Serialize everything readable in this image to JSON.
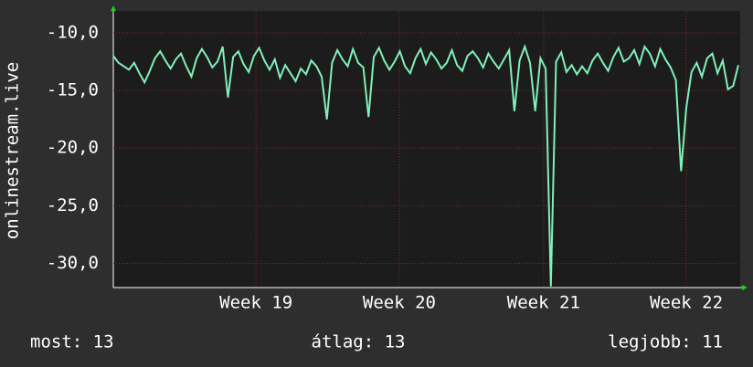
{
  "chart_data": {
    "type": "line",
    "y_label": "onlinestream.live",
    "values": [
      -12,
      -12.6,
      -12.9,
      -13.2,
      -12.6,
      -13.5,
      -14.3,
      -13.3,
      -12.2,
      -11.6,
      -12.4,
      -13.1,
      -12.3,
      -11.8,
      -12.9,
      -13.8,
      -12.2,
      -11.4,
      -12.1,
      -13.0,
      -12.5,
      -11.2,
      -15.6,
      -12.1,
      -11.6,
      -12.7,
      -13.4,
      -12.0,
      -11.3,
      -12.4,
      -13.2,
      -12.3,
      -13.9,
      -12.8,
      -13.5,
      -14.2,
      -13.1,
      -13.6,
      -12.4,
      -12.9,
      -13.8,
      -17.5,
      -12.6,
      -11.5,
      -12.3,
      -12.9,
      -11.4,
      -12.6,
      -13.0,
      -17.3,
      -12.1,
      -11.3,
      -12.4,
      -13.2,
      -12.5,
      -11.6,
      -12.9,
      -13.5,
      -12.2,
      -11.4,
      -12.7,
      -11.7,
      -12.3,
      -13.1,
      -12.6,
      -11.5,
      -12.8,
      -13.3,
      -12.0,
      -11.6,
      -12.2,
      -13.0,
      -11.8,
      -12.5,
      -13.1,
      -12.3,
      -11.5,
      -16.8,
      -12.4,
      -11.2,
      -12.6,
      -16.8,
      -12.2,
      -13.1,
      -32.0,
      -12.5,
      -11.7,
      -13.4,
      -12.8,
      -13.6,
      -12.9,
      -13.5,
      -12.4,
      -11.8,
      -12.6,
      -13.3,
      -12.1,
      -11.3,
      -12.5,
      -12.2,
      -11.5,
      -12.7,
      -11.2,
      -11.8,
      -12.9,
      -11.4,
      -12.3,
      -13.0,
      -14.1,
      -22.0,
      -16.5,
      -13.4,
      -12.6,
      -13.8,
      -12.2,
      -11.8,
      -13.5,
      -12.4,
      -14.9,
      -14.6,
      -12.8
    ],
    "color": "#80f0b8",
    "xlim": [
      0,
      120
    ],
    "xticks": [
      {
        "value": 27.4,
        "label": "Week 19"
      },
      {
        "value": 54.9,
        "label": "Week 20"
      },
      {
        "value": 82.6,
        "label": "Week 21"
      },
      {
        "value": 110,
        "label": "Week 22"
      }
    ],
    "ylim": [
      -32.1,
      -8.1
    ],
    "yticks": [
      {
        "value": -30,
        "label": "-30,0"
      },
      {
        "value": -25,
        "label": "-25,0"
      },
      {
        "value": -20,
        "label": "-20,0"
      },
      {
        "value": -15,
        "label": "-15,0"
      },
      {
        "value": -10,
        "label": "-10,0"
      }
    ],
    "grid": true,
    "legend": [
      "most: 13",
      "átlag: 13",
      "legjobb: 11"
    ]
  }
}
